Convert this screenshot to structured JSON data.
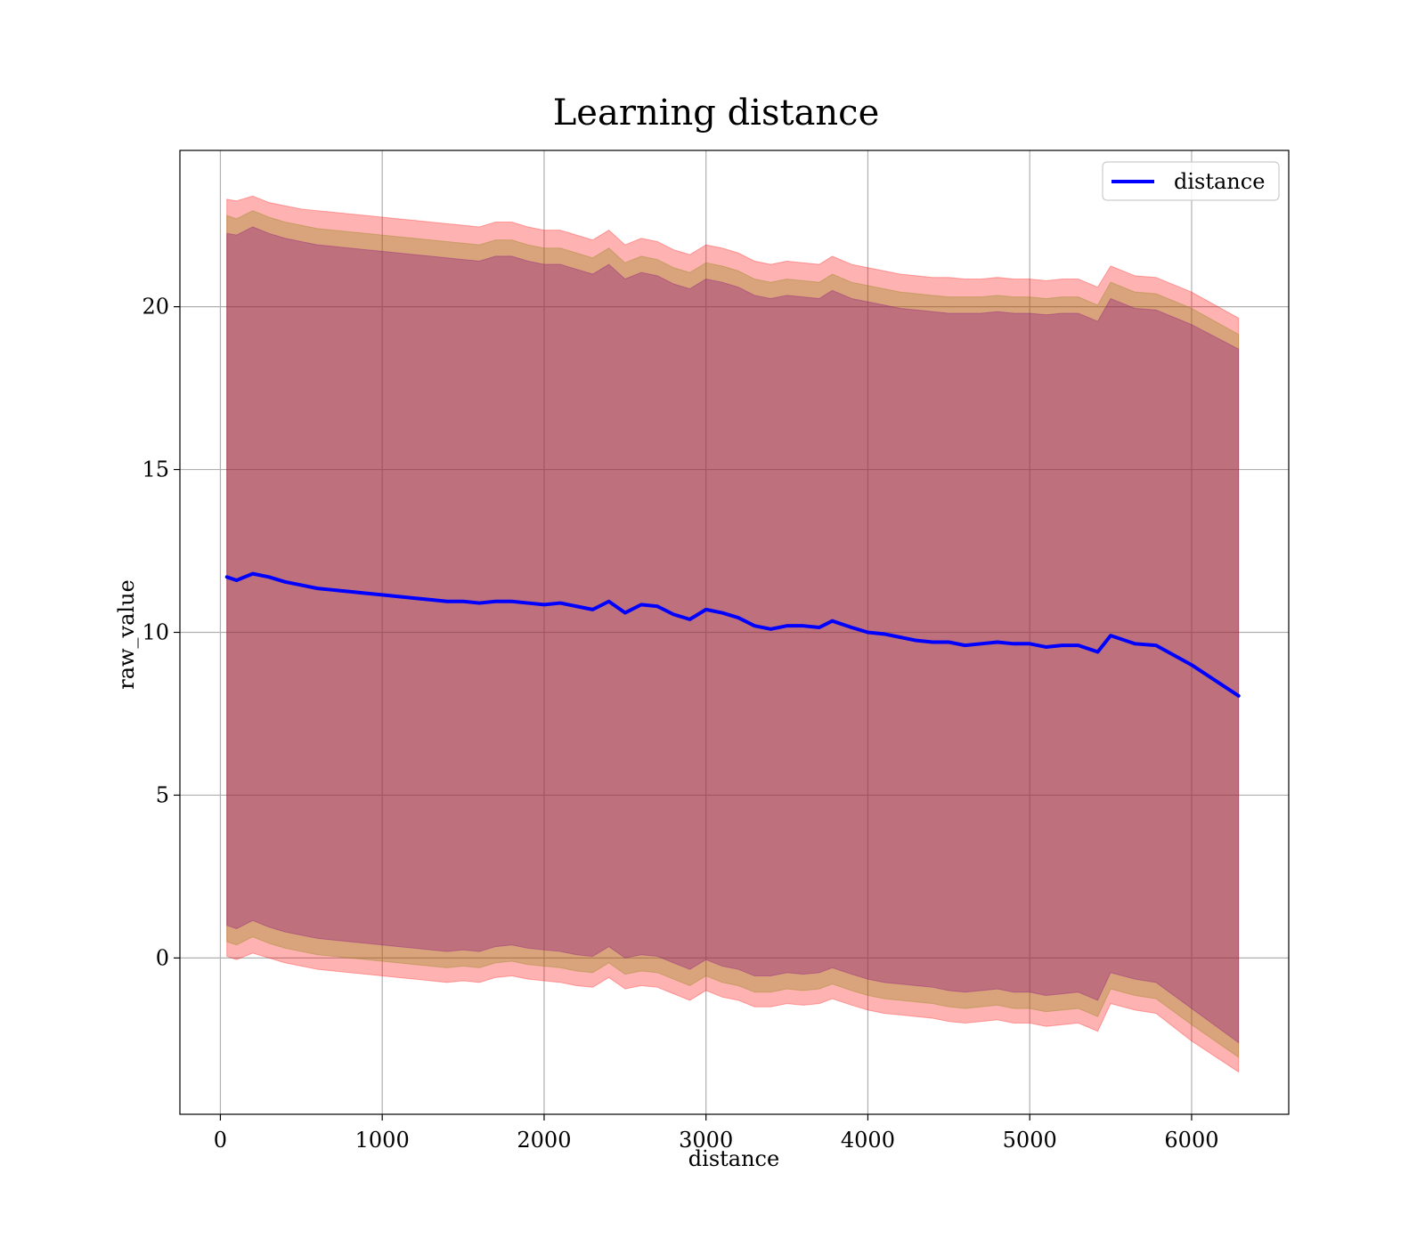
{
  "chart_data": {
    "type": "line",
    "title": "Learning distance",
    "xlabel": "distance",
    "ylabel": "raw_value",
    "xlim": [
      -250,
      6600
    ],
    "ylim": [
      -4.8,
      24.8
    ],
    "xticks": [
      0,
      1000,
      2000,
      3000,
      4000,
      5000,
      6000
    ],
    "yticks": [
      0,
      5,
      10,
      15,
      20
    ],
    "grid": true,
    "legend": {
      "placement": "top-right",
      "entries": [
        "distance"
      ]
    },
    "x": [
      40,
      100,
      200,
      300,
      400,
      500,
      600,
      700,
      800,
      900,
      1000,
      1100,
      1200,
      1300,
      1400,
      1500,
      1600,
      1700,
      1800,
      1900,
      2000,
      2100,
      2200,
      2300,
      2400,
      2500,
      2600,
      2700,
      2800,
      2900,
      3000,
      3100,
      3200,
      3300,
      3400,
      3500,
      3600,
      3700,
      3780,
      3900,
      4000,
      4100,
      4200,
      4300,
      4400,
      4500,
      4600,
      4700,
      4800,
      4900,
      5000,
      5100,
      5200,
      5300,
      5420,
      5500,
      5650,
      5780,
      6000,
      6290
    ],
    "series": [
      {
        "name": "distance",
        "color": "#0000ff",
        "values": [
          11.7,
          11.6,
          11.8,
          11.7,
          11.55,
          11.45,
          11.35,
          11.3,
          11.25,
          11.2,
          11.15,
          11.1,
          11.05,
          11.0,
          10.95,
          10.95,
          10.9,
          10.95,
          10.95,
          10.9,
          10.85,
          10.9,
          10.8,
          10.7,
          10.95,
          10.6,
          10.85,
          10.8,
          10.55,
          10.4,
          10.7,
          10.6,
          10.45,
          10.2,
          10.1,
          10.2,
          10.2,
          10.15,
          10.35,
          10.15,
          10.0,
          9.95,
          9.85,
          9.75,
          9.7,
          9.7,
          9.6,
          9.65,
          9.7,
          9.65,
          9.65,
          9.55,
          9.6,
          9.6,
          9.4,
          9.9,
          9.65,
          9.6,
          9.0,
          8.05
        ]
      }
    ],
    "bands": [
      {
        "color": "#ff0000",
        "alpha": 0.3,
        "upper": [
          23.3,
          23.25,
          23.4,
          23.2,
          23.1,
          23.0,
          22.95,
          22.9,
          22.85,
          22.8,
          22.75,
          22.7,
          22.65,
          22.6,
          22.55,
          22.5,
          22.45,
          22.6,
          22.6,
          22.45,
          22.35,
          22.35,
          22.2,
          22.05,
          22.35,
          21.9,
          22.1,
          22.0,
          21.75,
          21.6,
          21.9,
          21.8,
          21.65,
          21.4,
          21.3,
          21.4,
          21.35,
          21.3,
          21.55,
          21.3,
          21.2,
          21.1,
          21.0,
          20.95,
          20.9,
          20.9,
          20.85,
          20.85,
          20.9,
          20.85,
          20.85,
          20.8,
          20.85,
          20.85,
          20.6,
          21.25,
          20.95,
          20.9,
          20.45,
          19.65
        ],
        "lower": [
          0.05,
          -0.05,
          0.15,
          0.0,
          -0.15,
          -0.25,
          -0.35,
          -0.4,
          -0.45,
          -0.5,
          -0.55,
          -0.6,
          -0.65,
          -0.7,
          -0.75,
          -0.7,
          -0.75,
          -0.6,
          -0.55,
          -0.65,
          -0.7,
          -0.75,
          -0.85,
          -0.9,
          -0.6,
          -0.95,
          -0.85,
          -0.9,
          -1.1,
          -1.3,
          -1.0,
          -1.2,
          -1.3,
          -1.5,
          -1.5,
          -1.4,
          -1.45,
          -1.4,
          -1.25,
          -1.45,
          -1.6,
          -1.7,
          -1.75,
          -1.8,
          -1.85,
          -1.95,
          -2.0,
          -1.95,
          -1.9,
          -2.0,
          -2.0,
          -2.1,
          -2.05,
          -2.0,
          -2.25,
          -1.4,
          -1.6,
          -1.7,
          -2.55,
          -3.5
        ]
      },
      {
        "color": "#808000",
        "alpha": 0.3,
        "upper": [
          22.8,
          22.7,
          22.95,
          22.75,
          22.6,
          22.5,
          22.4,
          22.35,
          22.3,
          22.25,
          22.2,
          22.15,
          22.1,
          22.05,
          22.0,
          21.95,
          21.9,
          22.05,
          22.05,
          21.9,
          21.8,
          21.8,
          21.65,
          21.5,
          21.8,
          21.35,
          21.55,
          21.45,
          21.2,
          21.05,
          21.35,
          21.25,
          21.1,
          20.85,
          20.75,
          20.85,
          20.8,
          20.75,
          21.0,
          20.75,
          20.65,
          20.55,
          20.45,
          20.4,
          20.35,
          20.3,
          20.3,
          20.3,
          20.35,
          20.3,
          20.3,
          20.25,
          20.3,
          20.3,
          20.05,
          20.75,
          20.45,
          20.4,
          19.95,
          19.15
        ],
        "lower": [
          0.5,
          0.4,
          0.65,
          0.45,
          0.3,
          0.2,
          0.1,
          0.05,
          0.0,
          -0.05,
          -0.1,
          -0.15,
          -0.2,
          -0.25,
          -0.3,
          -0.25,
          -0.3,
          -0.15,
          -0.1,
          -0.2,
          -0.25,
          -0.3,
          -0.4,
          -0.45,
          -0.15,
          -0.5,
          -0.4,
          -0.45,
          -0.65,
          -0.85,
          -0.55,
          -0.75,
          -0.85,
          -1.05,
          -1.05,
          -0.95,
          -1.0,
          -0.95,
          -0.8,
          -1.0,
          -1.15,
          -1.25,
          -1.3,
          -1.35,
          -1.4,
          -1.5,
          -1.55,
          -1.5,
          -1.45,
          -1.55,
          -1.55,
          -1.65,
          -1.6,
          -1.55,
          -1.8,
          -0.95,
          -1.15,
          -1.25,
          -2.05,
          -3.05
        ]
      },
      {
        "color": "#800080",
        "alpha": 0.3,
        "upper": [
          22.25,
          22.2,
          22.45,
          22.25,
          22.1,
          22.0,
          21.9,
          21.85,
          21.8,
          21.75,
          21.7,
          21.65,
          21.6,
          21.55,
          21.5,
          21.45,
          21.4,
          21.55,
          21.55,
          21.4,
          21.3,
          21.3,
          21.15,
          21.0,
          21.3,
          20.85,
          21.05,
          20.95,
          20.7,
          20.55,
          20.85,
          20.75,
          20.6,
          20.35,
          20.25,
          20.35,
          20.3,
          20.25,
          20.5,
          20.25,
          20.15,
          20.05,
          19.95,
          19.9,
          19.85,
          19.8,
          19.8,
          19.8,
          19.85,
          19.8,
          19.8,
          19.75,
          19.8,
          19.8,
          19.55,
          20.25,
          19.95,
          19.9,
          19.45,
          18.7
        ],
        "lower": [
          1.0,
          0.9,
          1.15,
          0.95,
          0.8,
          0.7,
          0.6,
          0.55,
          0.5,
          0.45,
          0.4,
          0.35,
          0.3,
          0.25,
          0.2,
          0.25,
          0.2,
          0.35,
          0.4,
          0.3,
          0.25,
          0.2,
          0.1,
          0.05,
          0.35,
          0.0,
          0.1,
          0.05,
          -0.15,
          -0.35,
          -0.05,
          -0.25,
          -0.35,
          -0.55,
          -0.55,
          -0.45,
          -0.5,
          -0.45,
          -0.3,
          -0.5,
          -0.65,
          -0.75,
          -0.8,
          -0.85,
          -0.9,
          -1.0,
          -1.05,
          -1.0,
          -0.95,
          -1.05,
          -1.05,
          -1.15,
          -1.1,
          -1.05,
          -1.3,
          -0.45,
          -0.65,
          -0.75,
          -1.55,
          -2.6
        ]
      }
    ]
  }
}
